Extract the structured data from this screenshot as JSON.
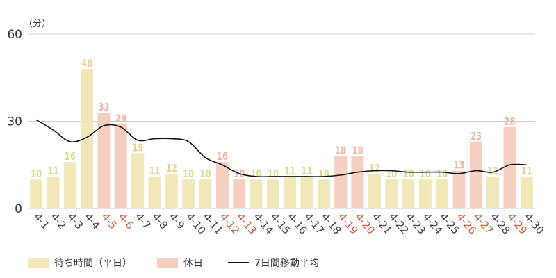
{
  "chart_data": {
    "type": "bar",
    "title": "",
    "xlabel": "",
    "ylabel": "（分）",
    "ylim": [
      0,
      60
    ],
    "yticks": [
      0,
      30,
      60
    ],
    "grid": true,
    "legend_position": "bottom-left",
    "categories": [
      "4-1",
      "4-2",
      "4-3",
      "4-4",
      "4-5",
      "4-6",
      "4-7",
      "4-8",
      "4-9",
      "4-10",
      "4-11",
      "4-12",
      "4-13",
      "4-14",
      "4-15",
      "4-16",
      "4-17",
      "4-18",
      "4-19",
      "4-20",
      "4-21",
      "4-22",
      "4-23",
      "4-24",
      "4-25",
      "4-26",
      "4-27",
      "4-28",
      "4-29",
      "4-30"
    ],
    "values": [
      10,
      11,
      16,
      48,
      33,
      29,
      19,
      11,
      12,
      10,
      10,
      16,
      10,
      10,
      10,
      11,
      11,
      10,
      18,
      18,
      12,
      10,
      10,
      10,
      10,
      13,
      23,
      11,
      28,
      11
    ],
    "holiday": [
      false,
      false,
      false,
      false,
      true,
      true,
      false,
      false,
      false,
      false,
      false,
      true,
      true,
      false,
      false,
      false,
      false,
      false,
      true,
      true,
      false,
      false,
      false,
      false,
      false,
      true,
      true,
      false,
      true,
      false
    ],
    "moving_average": [
      30.5,
      27,
      23,
      24.5,
      28.5,
      28,
      23.5,
      24,
      24,
      23,
      17.5,
      15,
      12,
      11,
      11,
      11,
      11,
      11,
      11.5,
      12.5,
      13,
      13,
      12.5,
      12.5,
      12.5,
      12,
      13,
      12.5,
      15,
      15
    ],
    "series": [
      {
        "name": "待ち時間（平日）",
        "color": "#f1e7b8"
      },
      {
        "name": "休日",
        "color": "#f6cfc0"
      },
      {
        "name": "7日間移動平均",
        "color": "#111111"
      }
    ],
    "colors": {
      "weekday_bar": "#f1e7b8",
      "holiday_bar": "#f6cfc0",
      "weekday_label": "#e2d48f",
      "holiday_label": "#eeb49e",
      "weekday_tick": "#444444",
      "holiday_tick": "#c0603f",
      "line": "#111111",
      "grid": "#cccccc"
    }
  }
}
